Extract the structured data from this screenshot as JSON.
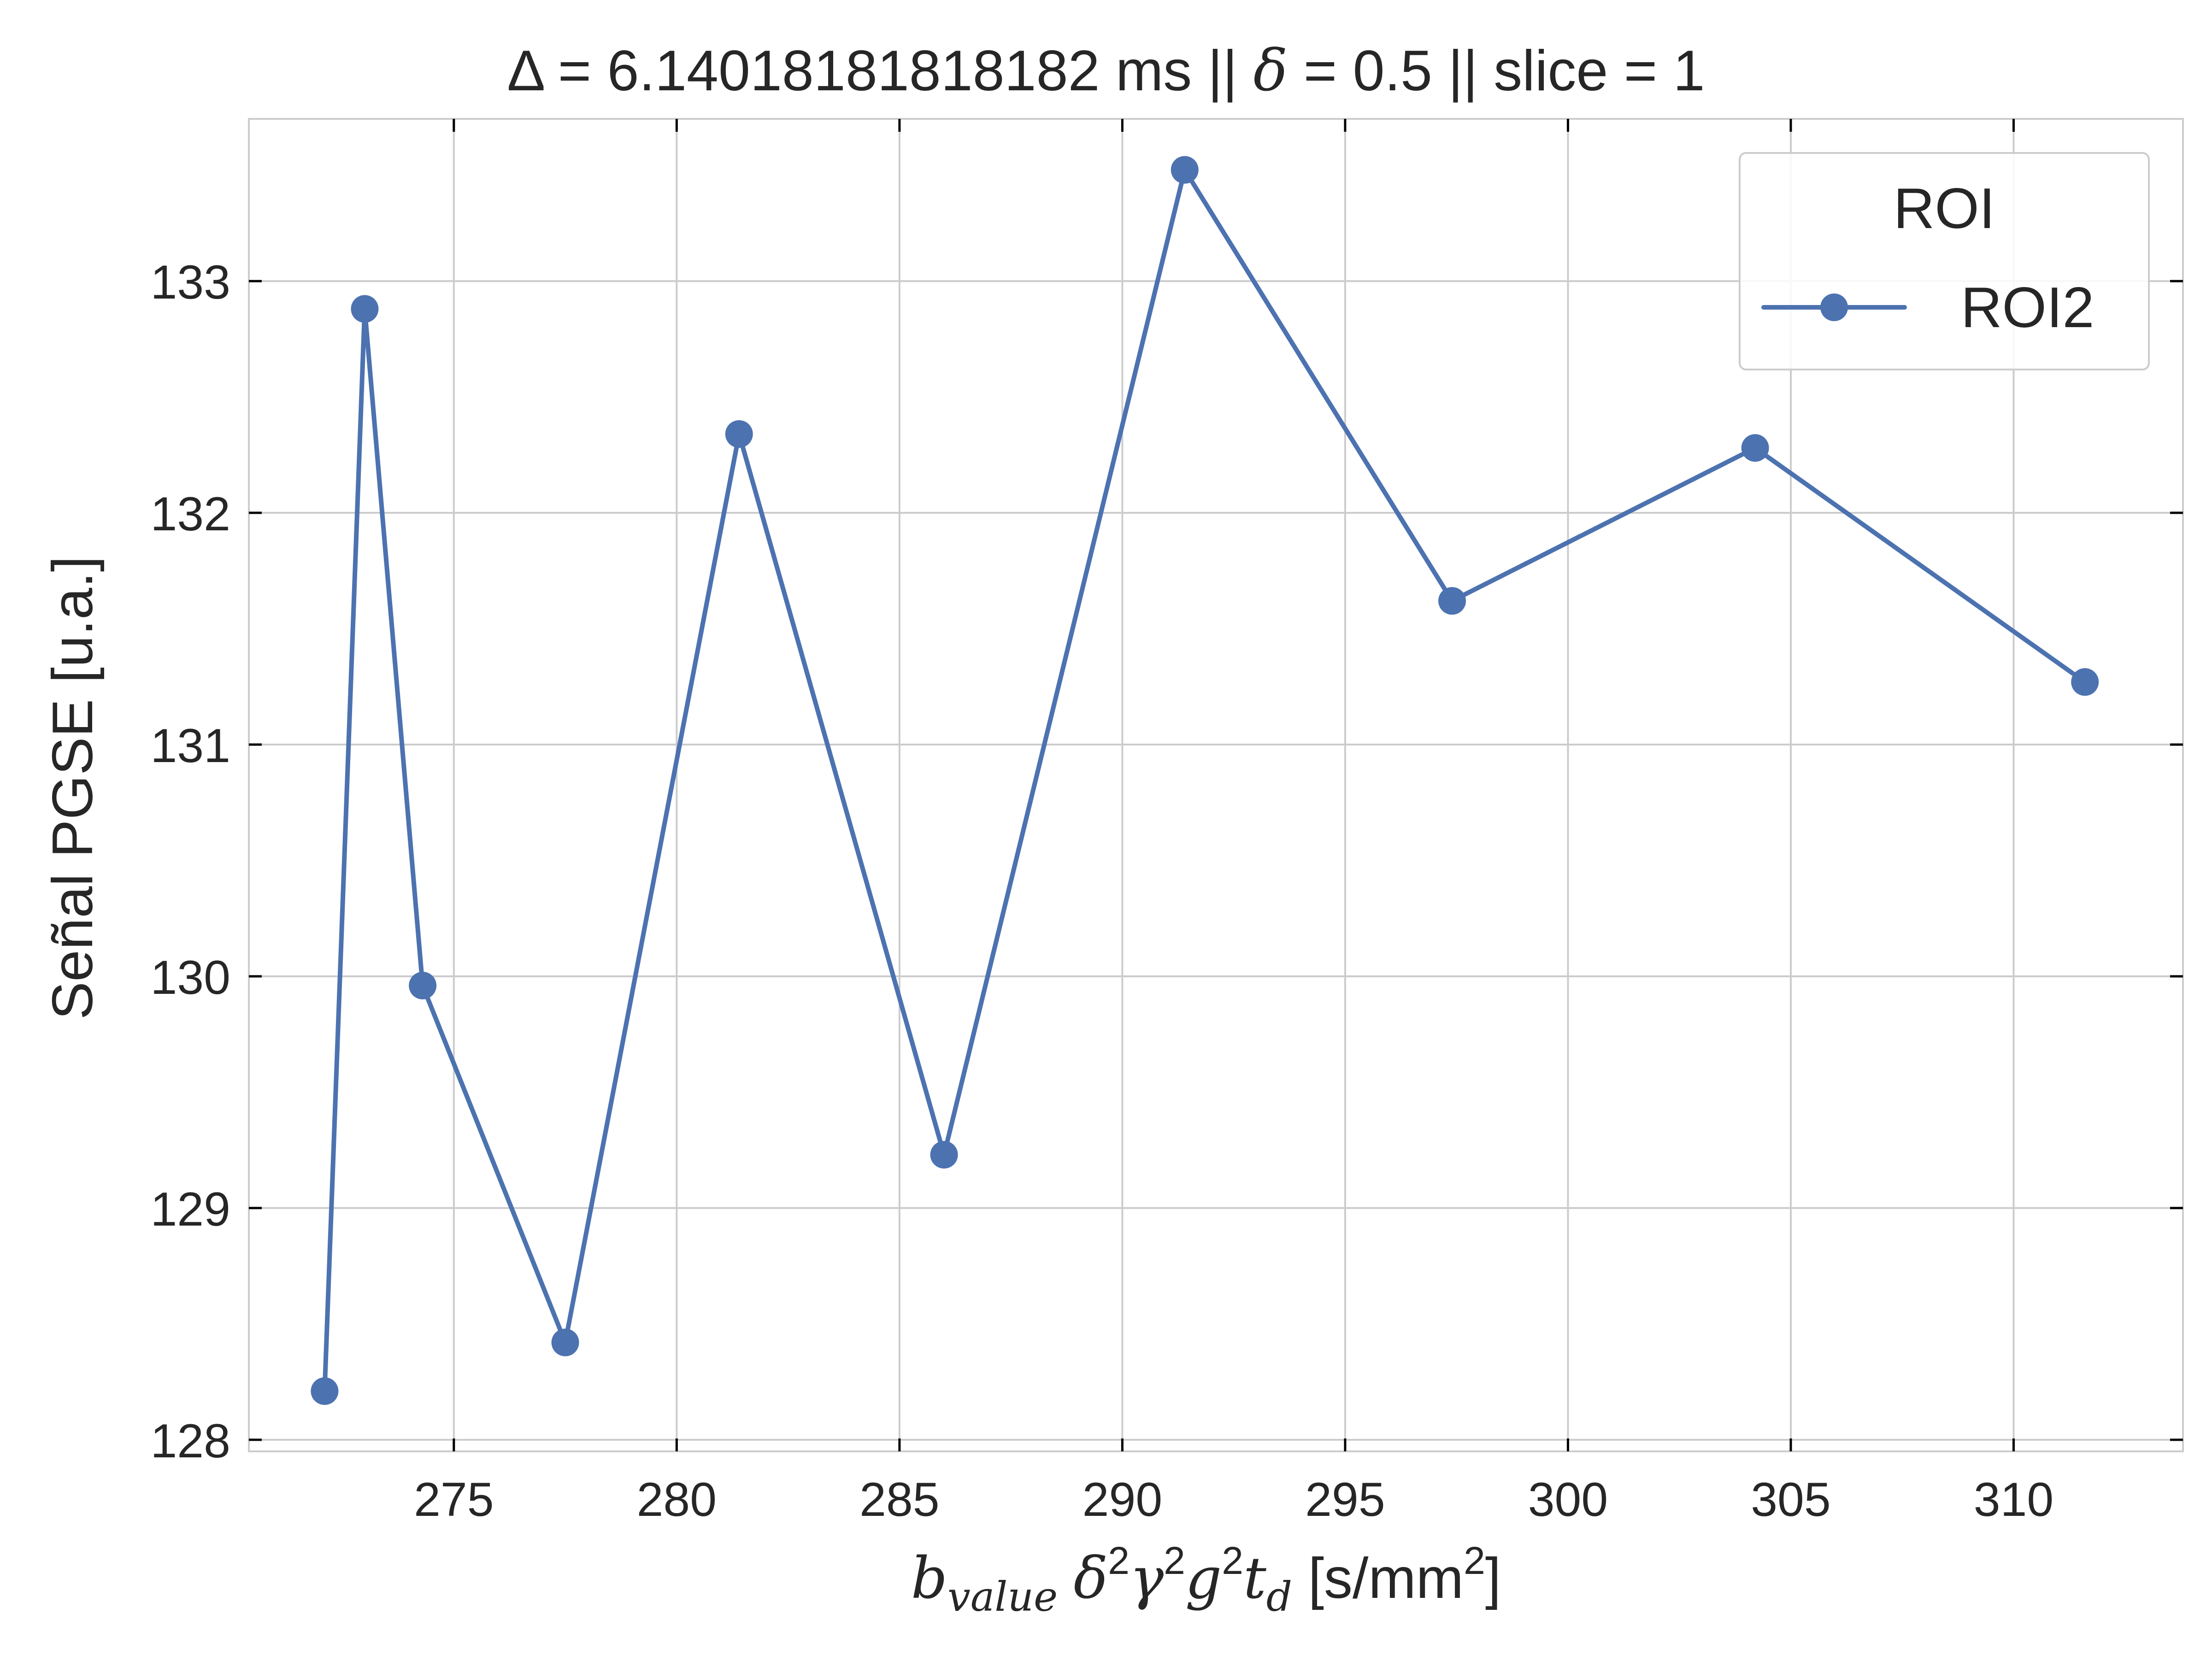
{
  "chart_data": {
    "type": "line",
    "title": "Δ = 6.14018181818182 ms  ||  δ = 0.5 || slice = 1",
    "title_parts": {
      "left": "Δ = 6.14018181818182 ms  ||  ",
      "delta_symbol": "δ",
      "right": " = 0.5 || slice = 1"
    },
    "xlabel": "b_value δ²γ²g²t_d [s/mm²]",
    "xlabel_parts": {
      "b": "b",
      "b_sub": "value",
      "delta": "δ",
      "gamma": "γ",
      "g": "g",
      "t": "t",
      "t_sub": "d",
      "sup": "2",
      "units_open": "[s/mm",
      "units_close": "]"
    },
    "ylabel": "Señal PGSE [u.a.]",
    "xlim": [
      270.4,
      313.8
    ],
    "ylim": [
      127.95,
      133.7
    ],
    "xticks": [
      275,
      280,
      285,
      290,
      295,
      300,
      305,
      310
    ],
    "yticks": [
      128,
      129,
      130,
      131,
      132,
      133
    ],
    "grid": true,
    "legend": {
      "title": "ROI",
      "placement": "top-right",
      "entries": [
        "ROI2"
      ]
    },
    "series": [
      {
        "name": "ROI2",
        "color": "#4c72b0",
        "marker": "circle",
        "points": [
          {
            "x": 272.1,
            "y": 128.21
          },
          {
            "x": 273.0,
            "y": 132.88
          },
          {
            "x": 274.3,
            "y": 129.96
          },
          {
            "x": 277.5,
            "y": 128.42
          },
          {
            "x": 281.4,
            "y": 132.34
          },
          {
            "x": 286.0,
            "y": 129.23
          },
          {
            "x": 291.4,
            "y": 133.48
          },
          {
            "x": 297.4,
            "y": 131.62
          },
          {
            "x": 304.2,
            "y": 132.28
          },
          {
            "x": 311.6,
            "y": 131.27
          }
        ]
      }
    ]
  }
}
